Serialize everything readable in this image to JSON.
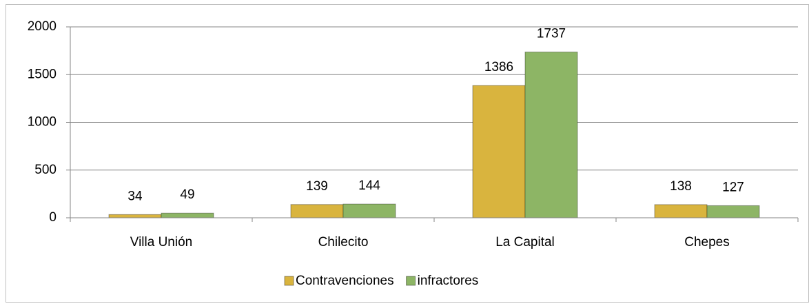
{
  "chart_data": {
    "type": "bar",
    "categories": [
      "Villa Unión",
      "Chilecito",
      "La Capital",
      "Chepes"
    ],
    "series": [
      {
        "name": "Contravenciones",
        "color": "#d9b43e",
        "values": [
          34,
          139,
          1386,
          138
        ]
      },
      {
        "name": "infractores",
        "color": "#8db565",
        "values": [
          49,
          144,
          1737,
          127
        ]
      }
    ],
    "ylim": [
      0,
      2000
    ],
    "yticks": [
      0,
      500,
      1000,
      1500,
      2000
    ],
    "grid": true,
    "legend": "bottom"
  }
}
